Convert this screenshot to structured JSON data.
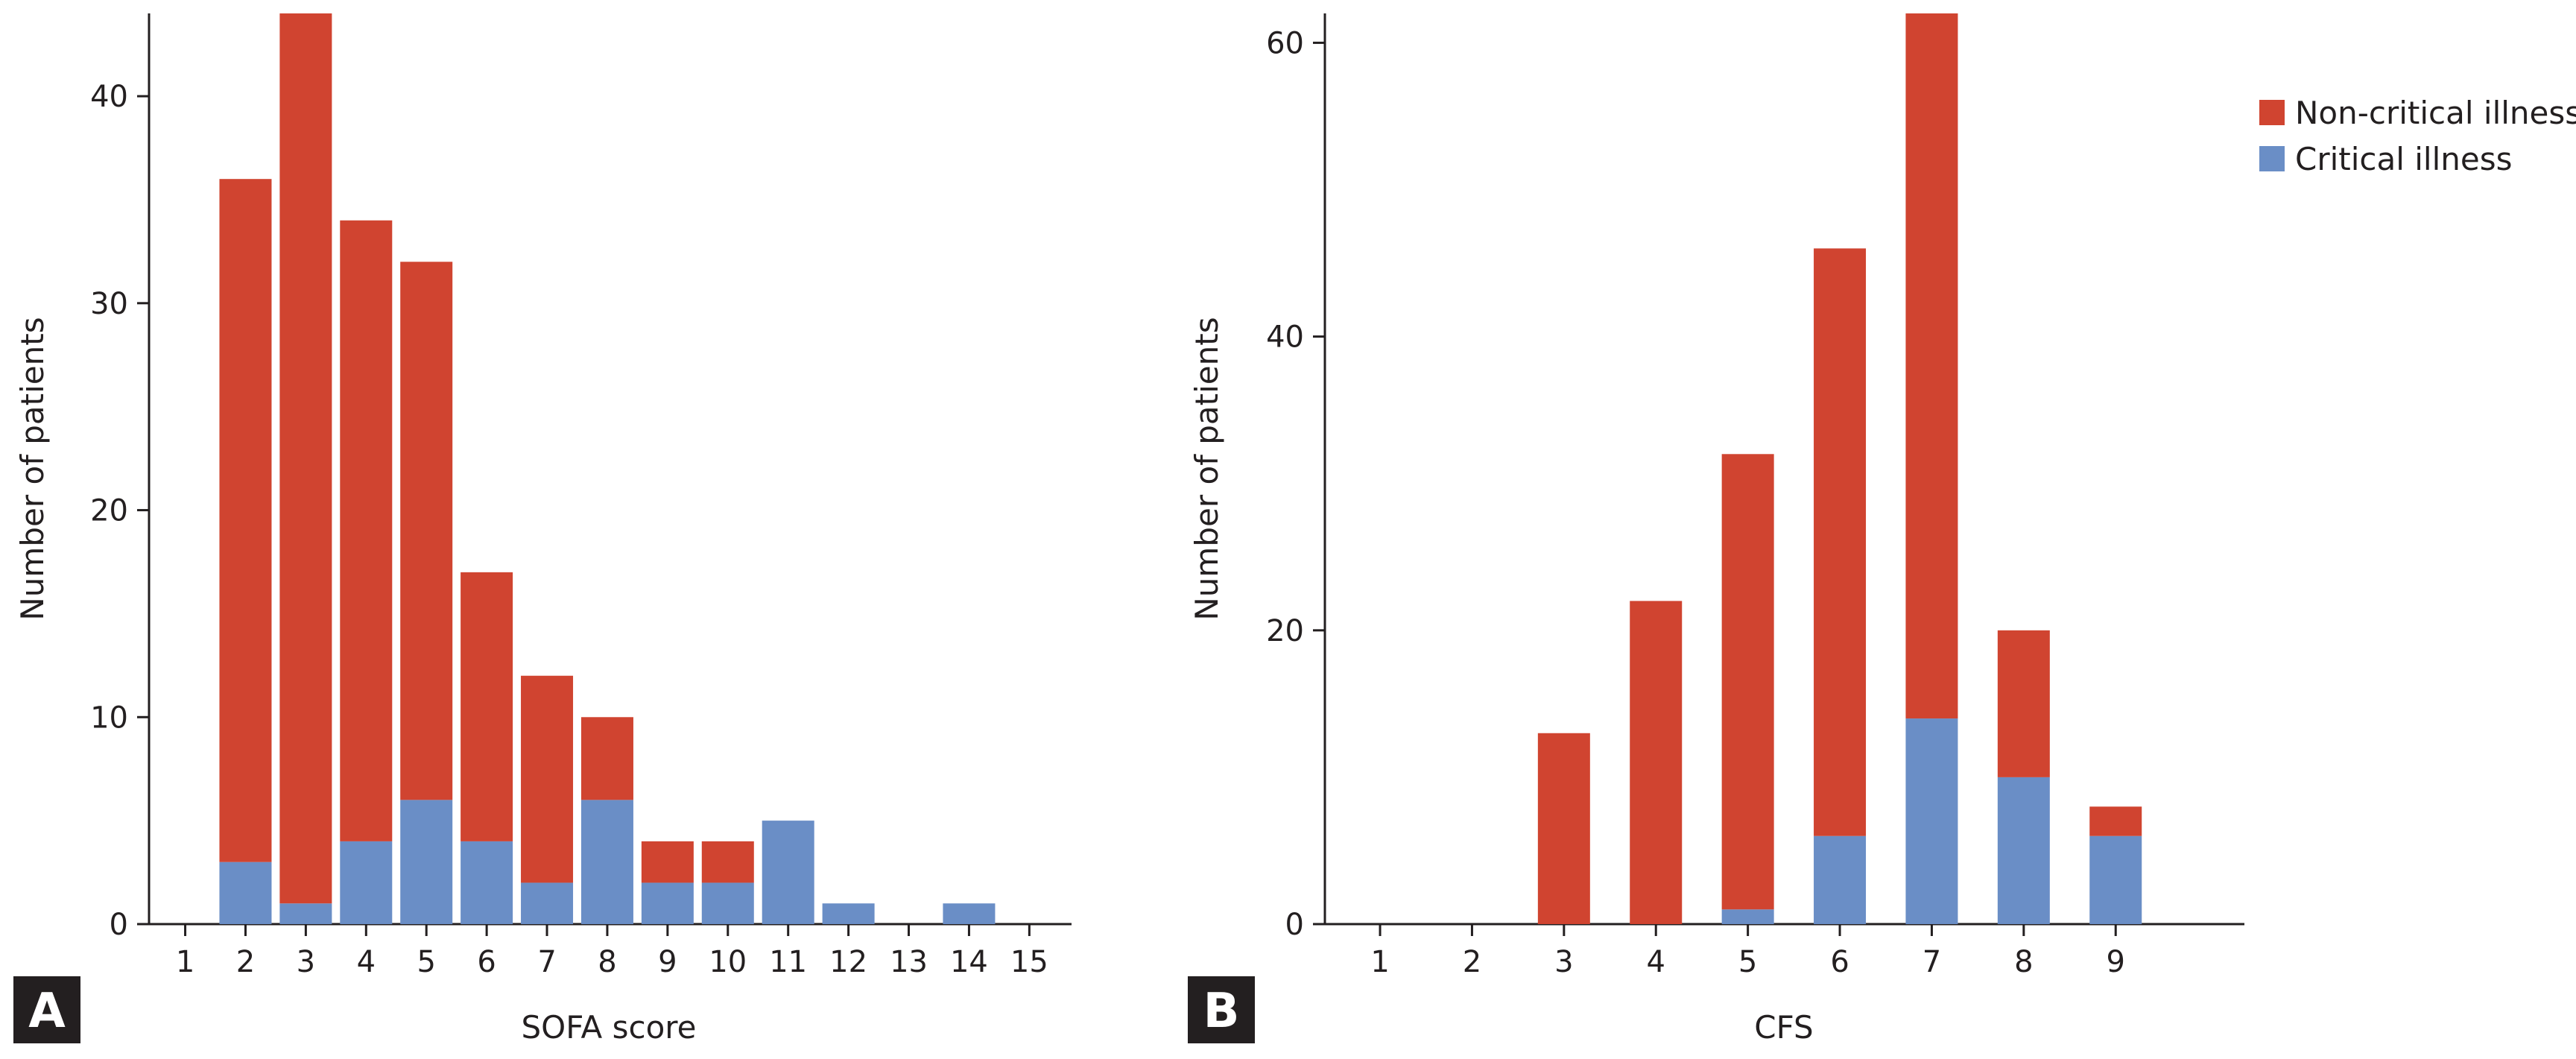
{
  "colors": {
    "non_critical": "#d04430",
    "critical": "#6a8ec6",
    "panel_badge": "#231f20"
  },
  "legend": {
    "items": [
      {
        "label": "Non-critical illness",
        "color": "#d04430"
      },
      {
        "label": "Critical illness",
        "color": "#6a8ec6"
      }
    ]
  },
  "chart_data": [
    {
      "type": "bar",
      "stacked": true,
      "panel": "A",
      "xlabel": "SOFA score",
      "ylabel": "Number of patients",
      "xlim": [
        0.4,
        15.7
      ],
      "ylim": [
        0,
        44
      ],
      "yticks": [
        0,
        10,
        20,
        30,
        40
      ],
      "categories": [
        "1",
        "2",
        "3",
        "4",
        "5",
        "6",
        "7",
        "8",
        "9",
        "10",
        "11",
        "12",
        "13",
        "14",
        "15"
      ],
      "series": [
        {
          "name": "Critical illness",
          "values": [
            0,
            3,
            1,
            4,
            6,
            4,
            2,
            6,
            2,
            2,
            5,
            1,
            0,
            1,
            0
          ]
        },
        {
          "name": "Non-critical illness",
          "values": [
            0,
            33,
            43,
            30,
            26,
            13,
            10,
            4,
            2,
            2,
            0,
            0,
            0,
            0,
            0
          ]
        }
      ]
    },
    {
      "type": "bar",
      "stacked": true,
      "panel": "B",
      "xlabel": "CFS",
      "ylabel": "Number of patients",
      "xlim": [
        0.4,
        10.4
      ],
      "ylim": [
        0,
        62
      ],
      "yticks": [
        0,
        20,
        40,
        60
      ],
      "categories": [
        "1",
        "2",
        "3",
        "4",
        "5",
        "6",
        "7",
        "8",
        "9"
      ],
      "series": [
        {
          "name": "Critical illness",
          "values": [
            0,
            0,
            0,
            0,
            1,
            6,
            14,
            10,
            6
          ]
        },
        {
          "name": "Non-critical illness",
          "values": [
            0,
            0,
            13,
            22,
            31,
            40,
            48,
            10,
            2
          ]
        }
      ]
    }
  ]
}
